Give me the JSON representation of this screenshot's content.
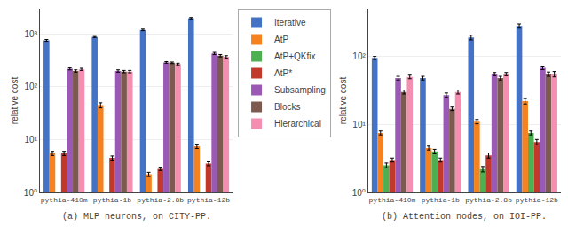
{
  "chart_data": [
    {
      "type": "bar",
      "title": "(a) MLP neurons, on CITY-PP.",
      "ylabel": "relative cost",
      "categories": [
        "pythia-410m",
        "pythia-1b",
        "pythia-2.8b",
        "pythia-12b"
      ],
      "series": [
        {
          "name": "Iterative",
          "color": "#4472c4",
          "values": [
            760,
            880,
            1200,
            2000
          ],
          "errors": [
            30,
            20,
            40,
            60
          ]
        },
        {
          "name": "AtP",
          "color": "#f5821f",
          "values": [
            5.5,
            45,
            2.2,
            7.5
          ],
          "errors": [
            0.5,
            5,
            0.2,
            0.7
          ]
        },
        {
          "name": "AtP+QKfix",
          "color": "#4caf50",
          "values": [
            null,
            null,
            null,
            null
          ],
          "errors": [
            null,
            null,
            null,
            null
          ]
        },
        {
          "name": "AtP*",
          "color": "#c0392b",
          "values": [
            5.5,
            4.5,
            2.8,
            3.5
          ],
          "errors": [
            0.5,
            0.4,
            0.2,
            0.3
          ]
        },
        {
          "name": "Subsampling",
          "color": "#9b59b6",
          "values": [
            220,
            200,
            290,
            430
          ],
          "errors": [
            10,
            10,
            10,
            20
          ]
        },
        {
          "name": "Blocks",
          "color": "#7d5a4f",
          "values": [
            200,
            195,
            285,
            390
          ],
          "errors": [
            10,
            10,
            10,
            20
          ]
        },
        {
          "name": "Hierarchical",
          "color": "#f48fb1",
          "values": [
            215,
            195,
            270,
            370
          ],
          "errors": [
            10,
            10,
            10,
            20
          ]
        }
      ],
      "log": "y",
      "ylim": [
        1,
        3000
      ],
      "yticks": [
        {
          "value": 1,
          "label": "10⁰"
        },
        {
          "value": 10,
          "label": "10¹"
        },
        {
          "value": 100,
          "label": "10²"
        },
        {
          "value": 1000,
          "label": "10³"
        }
      ],
      "grid": true,
      "legend": "upper center"
    },
    {
      "type": "bar",
      "title": "(b) Attention nodes, on IOI-PP.",
      "ylabel": "relative cost",
      "categories": [
        "pythia-410m",
        "pythia-1b",
        "pythia-2.8b",
        "pythia-12b"
      ],
      "series": [
        {
          "name": "Iterative",
          "color": "#4472c4",
          "values": [
            95,
            48,
            190,
            280
          ],
          "errors": [
            5,
            3,
            15,
            20
          ]
        },
        {
          "name": "AtP",
          "color": "#f5821f",
          "values": [
            7.5,
            4.5,
            11,
            22
          ],
          "errors": [
            0.5,
            0.3,
            0.8,
            2
          ]
        },
        {
          "name": "AtP+QKfix",
          "color": "#4caf50",
          "values": [
            2.5,
            4.0,
            2.2,
            7.5
          ],
          "errors": [
            0.2,
            0.3,
            0.2,
            0.5
          ]
        },
        {
          "name": "AtP*",
          "color": "#c0392b",
          "values": [
            3.0,
            3.0,
            3.5,
            5.5
          ],
          "errors": [
            0.2,
            0.2,
            0.3,
            0.5
          ]
        },
        {
          "name": "Subsampling",
          "color": "#9b59b6",
          "values": [
            48,
            27,
            55,
            68
          ],
          "errors": [
            3,
            2,
            3,
            4
          ]
        },
        {
          "name": "Blocks",
          "color": "#7d5a4f",
          "values": [
            30,
            17,
            48,
            55
          ],
          "errors": [
            2,
            1,
            3,
            4
          ]
        },
        {
          "name": "Hierarchical",
          "color": "#f48fb1",
          "values": [
            50,
            30,
            55,
            55
          ],
          "errors": [
            3,
            2,
            3,
            5
          ]
        }
      ],
      "log": "y",
      "ylim": [
        1,
        500
      ],
      "yticks": [
        {
          "value": 1,
          "label": "10⁰"
        },
        {
          "value": 10,
          "label": "10¹"
        },
        {
          "value": 100,
          "label": "10²"
        }
      ],
      "grid": true,
      "legend": "upper center"
    }
  ]
}
